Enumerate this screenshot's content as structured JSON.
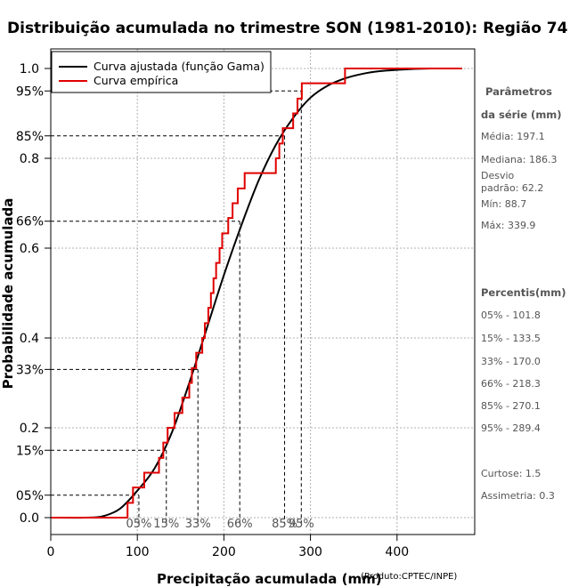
{
  "chart_data": {
    "type": "line",
    "title": "Distribuição acumulada no trimestre SON (1981-2010): Região 74",
    "xlabel": "Precipitação acumulada (mm)",
    "ylabel": "Probabilidade acumulada",
    "credit": "(Produto:CPTEC/INPE)",
    "xlim": [
      0,
      490
    ],
    "ylim": [
      0,
      1
    ],
    "x_ticks": [
      0,
      100,
      200,
      300,
      400
    ],
    "y_ticks": [
      {
        "value": 0.0,
        "label": "0.0"
      },
      {
        "value": 0.2,
        "label": "0.2"
      },
      {
        "value": 0.4,
        "label": "0.4"
      },
      {
        "value": 0.6,
        "label": "0.6"
      },
      {
        "value": 0.8,
        "label": "0.8"
      },
      {
        "value": 1.0,
        "label": "1.0"
      }
    ],
    "grid": true,
    "legend_position": "top-left",
    "series": [
      {
        "name": "Curva ajustada (função Gama)",
        "color": "#000000",
        "style": "smooth",
        "x": [
          0,
          40,
          60,
          80,
          100,
          120,
          140,
          160,
          180,
          200,
          220,
          240,
          260,
          280,
          300,
          320,
          340,
          360,
          380,
          400,
          420,
          440,
          460,
          475
        ],
        "y": [
          0.0,
          0.0,
          0.003,
          0.02,
          0.06,
          0.11,
          0.19,
          0.3,
          0.42,
          0.54,
          0.65,
          0.75,
          0.83,
          0.89,
          0.935,
          0.962,
          0.978,
          0.988,
          0.994,
          0.997,
          0.999,
          1.0,
          1.0,
          1.0
        ]
      },
      {
        "name": "Curva empírica",
        "color": "#e00000",
        "style": "step",
        "x": [
          0,
          88.7,
          95,
          108,
          125,
          130,
          135,
          143,
          152,
          160,
          163,
          168,
          175,
          178,
          182,
          185,
          188,
          191,
          195,
          198,
          205,
          210,
          216,
          224,
          260,
          264,
          268,
          280,
          285,
          290,
          295,
          339.9,
          475
        ],
        "y": [
          0.0,
          0.033,
          0.067,
          0.1,
          0.133,
          0.167,
          0.2,
          0.233,
          0.267,
          0.3,
          0.333,
          0.367,
          0.4,
          0.433,
          0.467,
          0.5,
          0.533,
          0.567,
          0.6,
          0.633,
          0.667,
          0.7,
          0.733,
          0.767,
          0.8,
          0.833,
          0.867,
          0.9,
          0.933,
          0.967,
          0.967,
          1.0,
          1.0
        ]
      }
    ],
    "percentile_guides": [
      {
        "label": "05%",
        "prob": 0.05,
        "x": 101.8
      },
      {
        "label": "15%",
        "prob": 0.15,
        "x": 133.5
      },
      {
        "label": "33%",
        "prob": 0.33,
        "x": 170.0
      },
      {
        "label": "66%",
        "prob": 0.66,
        "x": 218.3
      },
      {
        "label": "85%",
        "prob": 0.85,
        "x": 270.1
      },
      {
        "label": "95%",
        "prob": 0.95,
        "x": 289.4
      }
    ]
  },
  "sidebar": {
    "params_heading_1": "Parâmetros",
    "params_heading_2": "da série (mm)",
    "media": "Média: 197.1",
    "mediana": "Mediana: 186.3",
    "desvio_1": "Desvio",
    "desvio_2": "padrão: 62.2",
    "min": "Mín: 88.7",
    "max": "Máx: 339.9",
    "percentis_heading": "Percentis(mm)",
    "percentis": [
      "05% - 101.8",
      "15% - 133.5",
      "33% - 170.0",
      "66% - 218.3",
      "85% - 270.1",
      "95% - 289.4"
    ],
    "curtose": "Curtose: 1.5",
    "assimetria": "Assimetria: 0.3"
  }
}
